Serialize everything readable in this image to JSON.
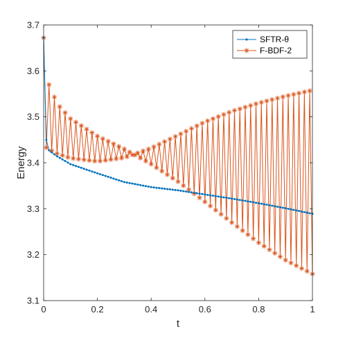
{
  "chart_data": {
    "type": "line",
    "xlabel": "t",
    "ylabel": "Energy",
    "xlim": [
      0,
      1
    ],
    "ylim": [
      3.1,
      3.7
    ],
    "xticks": [
      "0",
      "0.2",
      "0.4",
      "0.6",
      "0.8",
      "1"
    ],
    "yticks": [
      "3.1",
      "3.2",
      "3.3",
      "3.4",
      "3.5",
      "3.6",
      "3.7"
    ],
    "grid": false,
    "legend_position": "top-right",
    "series": [
      {
        "name": "SFTR-θ",
        "color": "#0072BD",
        "marker": "dot",
        "values": {
          "start": 3.672,
          "dt": 0.01,
          "anchors": [
            [
              0.0,
              3.672
            ],
            [
              0.01,
              3.45
            ],
            [
              0.02,
              3.427
            ],
            [
              0.05,
              3.414
            ],
            [
              0.1,
              3.397
            ],
            [
              0.2,
              3.377
            ],
            [
              0.3,
              3.358
            ],
            [
              0.4,
              3.347
            ],
            [
              0.5,
              3.34
            ],
            [
              0.6,
              3.331
            ],
            [
              0.7,
              3.322
            ],
            [
              0.8,
              3.312
            ],
            [
              0.9,
              3.301
            ],
            [
              1.0,
              3.289
            ]
          ]
        }
      },
      {
        "name": "F-BDF-2",
        "color": "#D95319",
        "marker": "asterisk",
        "values": {
          "dt": 0.01,
          "odd_envelope": [
            [
              0.01,
              3.433
            ],
            [
              0.05,
              3.42
            ],
            [
              0.1,
              3.41
            ],
            [
              0.2,
              3.403
            ],
            [
              0.3,
              3.411
            ],
            [
              0.4,
              3.432
            ],
            [
              0.5,
              3.46
            ],
            [
              0.6,
              3.489
            ],
            [
              0.7,
              3.512
            ],
            [
              0.8,
              3.53
            ],
            [
              0.9,
              3.545
            ],
            [
              1.0,
              3.558
            ]
          ],
          "even_envelope": [
            [
              0.0,
              3.672
            ],
            [
              0.02,
              3.57
            ],
            [
              0.04,
              3.543
            ],
            [
              0.06,
              3.522
            ],
            [
              0.1,
              3.496
            ],
            [
              0.2,
              3.458
            ],
            [
              0.3,
              3.43
            ],
            [
              0.4,
              3.397
            ],
            [
              0.5,
              3.359
            ],
            [
              0.6,
              3.315
            ],
            [
              0.7,
              3.27
            ],
            [
              0.8,
              3.226
            ],
            [
              0.9,
              3.188
            ],
            [
              1.0,
              3.158
            ]
          ]
        }
      }
    ]
  }
}
